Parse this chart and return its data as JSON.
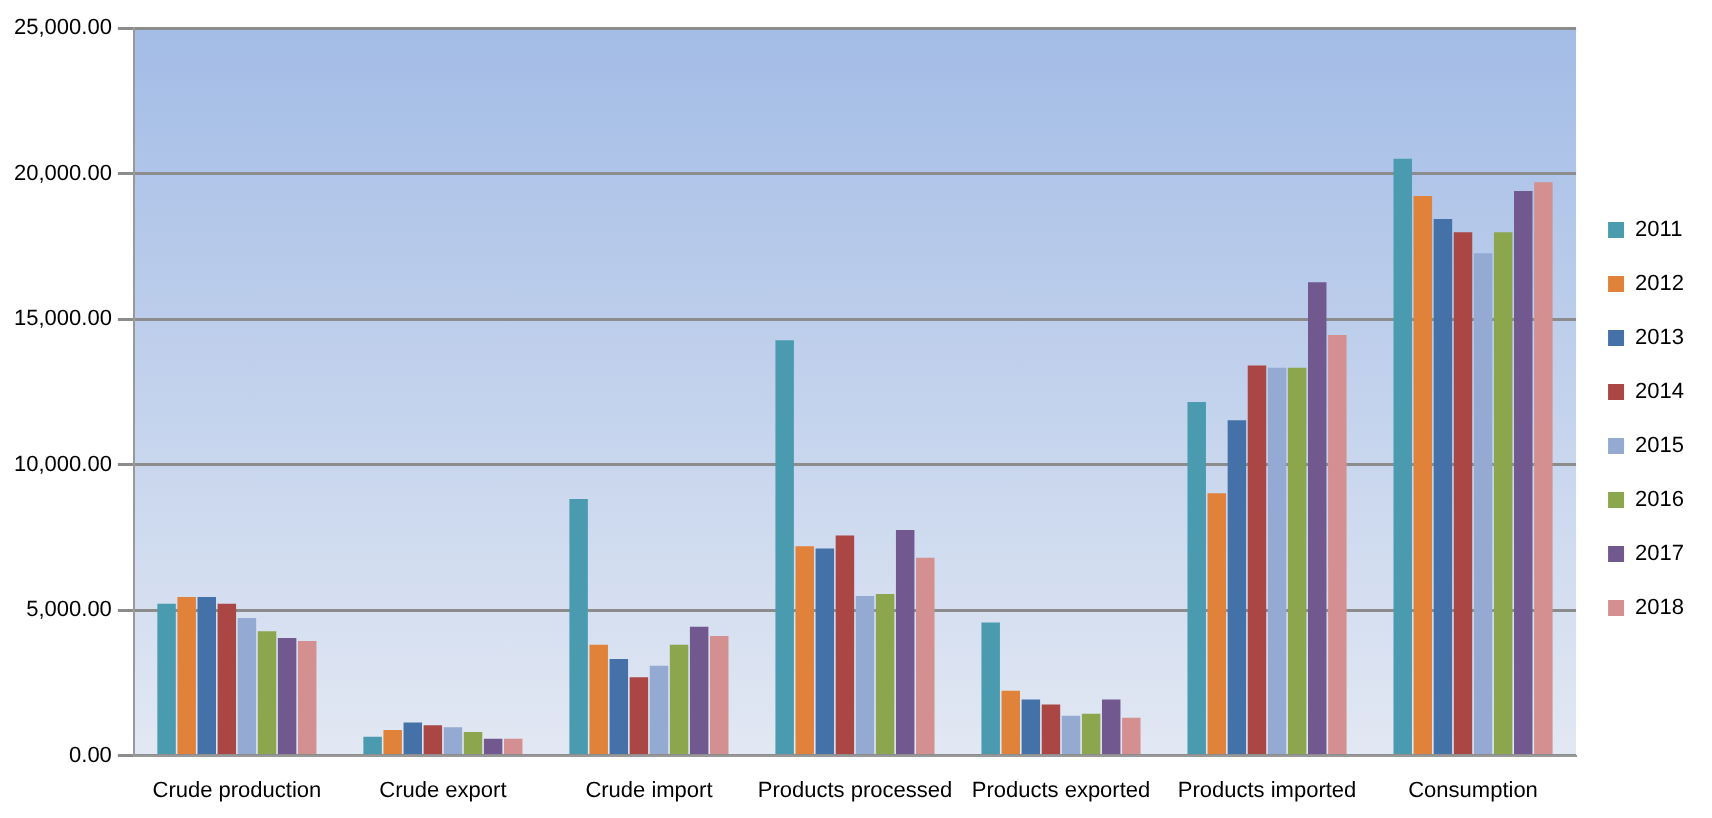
{
  "chart_data": {
    "type": "bar",
    "categories": [
      "Crude production",
      "Crude export",
      "Crude import",
      "Products processed",
      "Products exported",
      "Products imported",
      "Consumption"
    ],
    "series": [
      {
        "name": "2011",
        "color": "#4a9bb0",
        "values": [
          5220,
          650,
          8820,
          14270,
          4570,
          12150,
          20510
        ]
      },
      {
        "name": "2012",
        "color": "#e0823a",
        "values": [
          5450,
          880,
          3810,
          7190,
          2230,
          9010,
          19230
        ]
      },
      {
        "name": "2013",
        "color": "#4471a8",
        "values": [
          5450,
          1140,
          3320,
          7120,
          1930,
          11520,
          18440
        ]
      },
      {
        "name": "2014",
        "color": "#aa4644",
        "values": [
          5220,
          1040,
          2690,
          7560,
          1760,
          13400,
          17980
        ]
      },
      {
        "name": "2015",
        "color": "#95aad3",
        "values": [
          4730,
          970,
          3090,
          5480,
          1370,
          13330,
          17260
        ]
      },
      {
        "name": "2016",
        "color": "#8ba64c",
        "values": [
          4270,
          810,
          3810,
          5550,
          1440,
          13330,
          17980
        ]
      },
      {
        "name": "2017",
        "color": "#71588f",
        "values": [
          4040,
          580,
          4430,
          7750,
          1930,
          16260,
          19400
        ]
      },
      {
        "name": "2018",
        "color": "#d49090",
        "values": [
          3940,
          580,
          4110,
          6800,
          1300,
          14450,
          19700
        ]
      }
    ],
    "ylim": [
      0,
      25000
    ],
    "yticks": [
      {
        "value": 0,
        "label": "0.00"
      },
      {
        "value": 5000,
        "label": "5,000.00"
      },
      {
        "value": 10000,
        "label": "10,000.00"
      },
      {
        "value": 15000,
        "label": "15,000.00"
      },
      {
        "value": 20000,
        "label": "20,000.00"
      },
      {
        "value": 25000,
        "label": "25,000.00"
      }
    ],
    "grid": "y",
    "legend": "right"
  }
}
